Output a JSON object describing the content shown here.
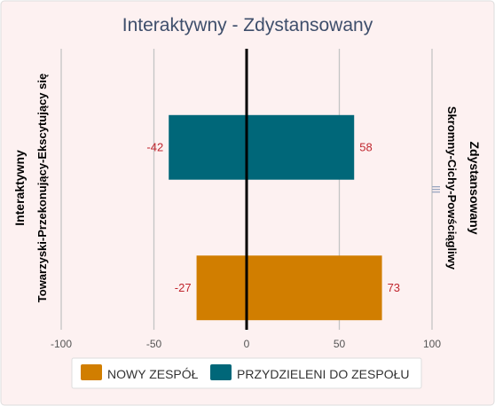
{
  "chart_data": {
    "type": "bar",
    "orientation": "horizontal",
    "title": "Interaktywny - Zdystansowany",
    "left_label_line1": "Interaktywny",
    "left_label_line2": "Towarzyski-Przekonujący-Ekscytujący się",
    "right_label_line1": "Zdystansowany",
    "right_label_line2": "Skromny-Cichy-Powściągliwy",
    "xlim": [
      -100,
      100
    ],
    "ticks": [
      -100,
      -50,
      0,
      50,
      100
    ],
    "tick_labels": [
      "-100",
      "-50",
      "0",
      "50",
      "100"
    ],
    "series": [
      {
        "name": "NOWY ZESPÓŁ",
        "color": "#d17e00",
        "left": -27,
        "right": 73,
        "left_label": "-27",
        "right_label": "73"
      },
      {
        "name": "PRZYDZIELENI DO ZESPOŁU",
        "color": "#006779",
        "left": -42,
        "right": 58,
        "left_label": "-42",
        "right_label": "58"
      }
    ],
    "bar_order_top_to_bottom": [
      "PRZYDZIELENI DO ZESPOŁU",
      "NOWY ZESPÓŁ"
    ],
    "grid": true,
    "legend_position": "bottom"
  },
  "colors": {
    "background": "#fdf1f1",
    "title": "#3e4e6b",
    "grid": "#c4c4c4",
    "zero_line": "#000000",
    "value_label": "#c0262e",
    "axis_label": "#000000",
    "tick_label": "#555555"
  },
  "menu_icon": "hamburger-icon"
}
